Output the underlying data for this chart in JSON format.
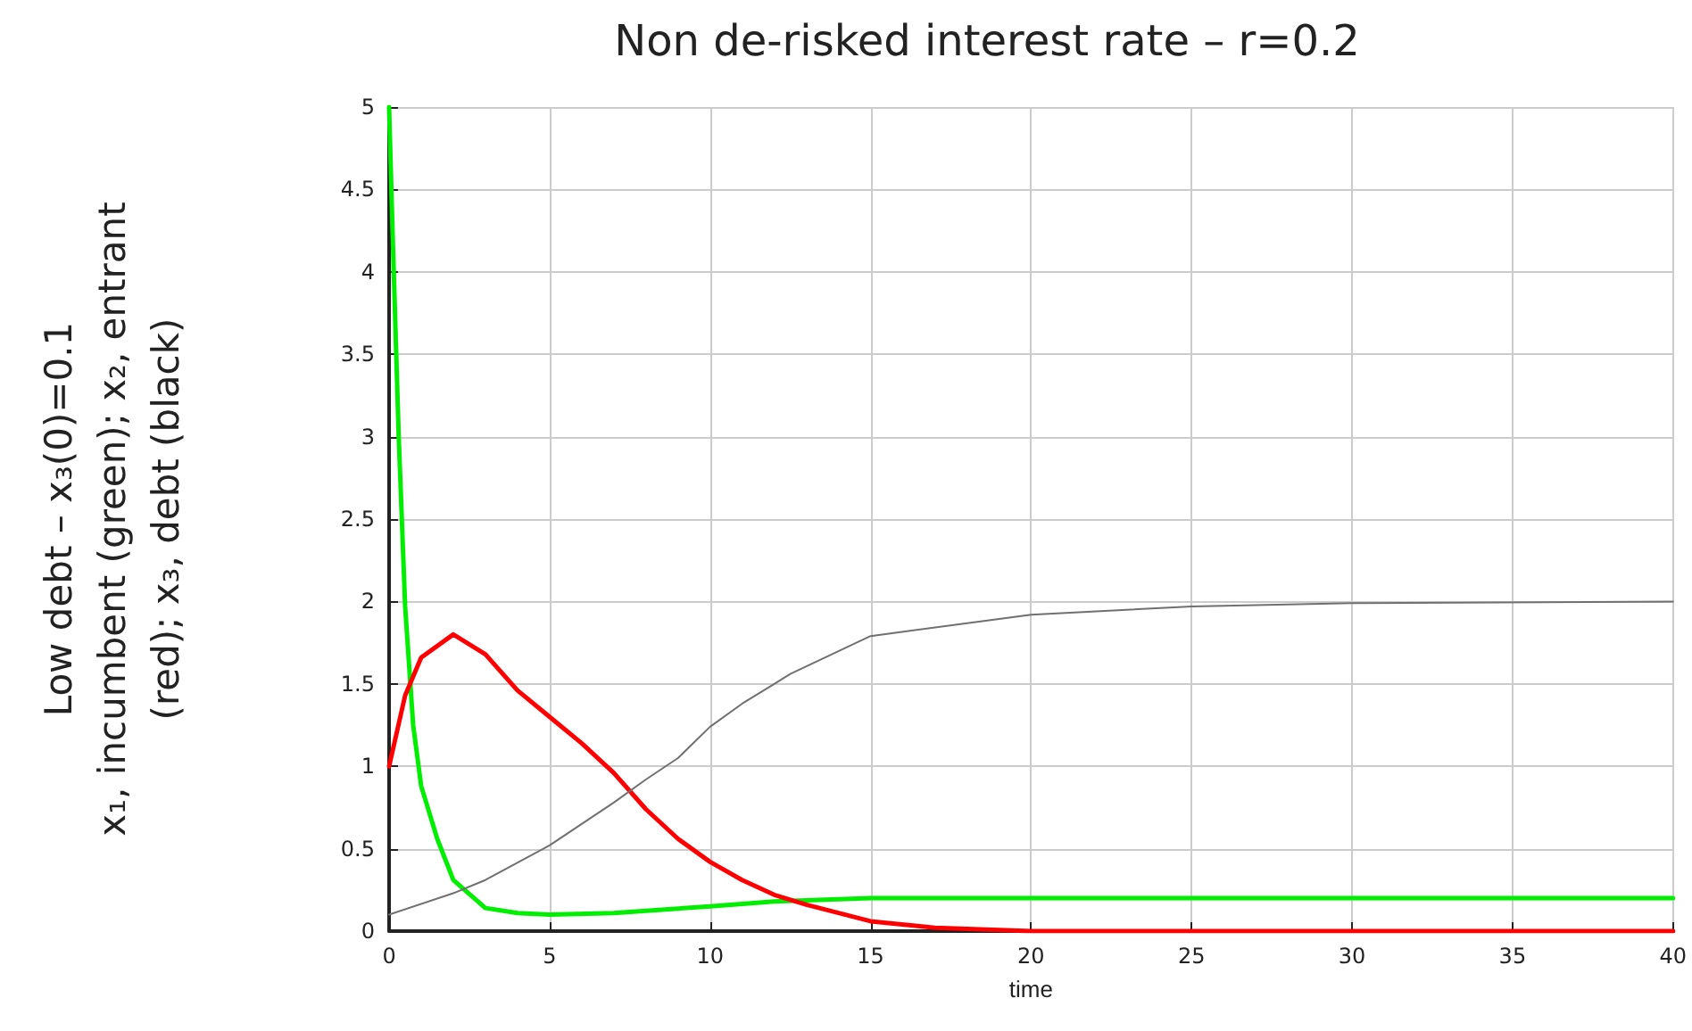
{
  "chart_data": {
    "type": "line",
    "title": "Non de-risked interest rate – r=0.2",
    "xlabel": "time",
    "ylabel": "Low debt – x₃(0)=0.1\nx₁, incumbent (green); x₂, entrant\n(red); x₃, debt (black)",
    "xlim": [
      0,
      40
    ],
    "xticks": [
      0,
      5,
      10,
      15,
      20,
      25,
      30,
      35,
      40
    ],
    "ylim": [
      0,
      5
    ],
    "yticks": [
      0,
      0.5,
      1,
      1.5,
      2,
      2.5,
      3,
      3.5,
      4,
      4.5,
      5
    ],
    "grid": true,
    "marker": "none",
    "line_style": "solid",
    "series": [
      {
        "color": "#00ee00",
        "x": [
          0,
          0.1,
          0.3,
          0.5,
          0.75,
          1,
          1.5,
          2,
          3,
          4,
          5,
          7,
          10,
          12,
          15,
          20,
          25,
          30,
          35,
          40
        ],
        "values": [
          5,
          4.3,
          3,
          1.97,
          1.25,
          0.88,
          0.56,
          0.31,
          0.14,
          0.11,
          0.1,
          0.11,
          0.15,
          0.18,
          0.2,
          0.2,
          0.2,
          0.2,
          0.2,
          0.2
        ]
      },
      {
        "color": "#ff0000",
        "x": [
          0,
          0.5,
          1,
          2,
          3,
          4,
          5,
          6,
          7,
          8,
          9,
          10,
          11,
          12,
          13,
          15,
          17,
          20,
          25,
          30,
          35,
          40
        ],
        "values": [
          1,
          1.43,
          1.66,
          1.8,
          1.68,
          1.46,
          1.3,
          1.14,
          0.96,
          0.74,
          0.56,
          0.42,
          0.31,
          0.22,
          0.16,
          0.06,
          0.02,
          0,
          0,
          0,
          0,
          0
        ]
      },
      {
        "color": "#707070",
        "x": [
          0,
          2,
          3,
          5,
          7,
          8,
          9,
          10,
          11,
          12,
          12.5,
          15,
          20,
          25,
          30,
          40
        ],
        "values": [
          0.1,
          0.23,
          0.31,
          0.52,
          0.78,
          0.92,
          1.05,
          1.24,
          1.38,
          1.5,
          1.56,
          1.79,
          1.92,
          1.97,
          1.99,
          2
        ]
      }
    ]
  }
}
